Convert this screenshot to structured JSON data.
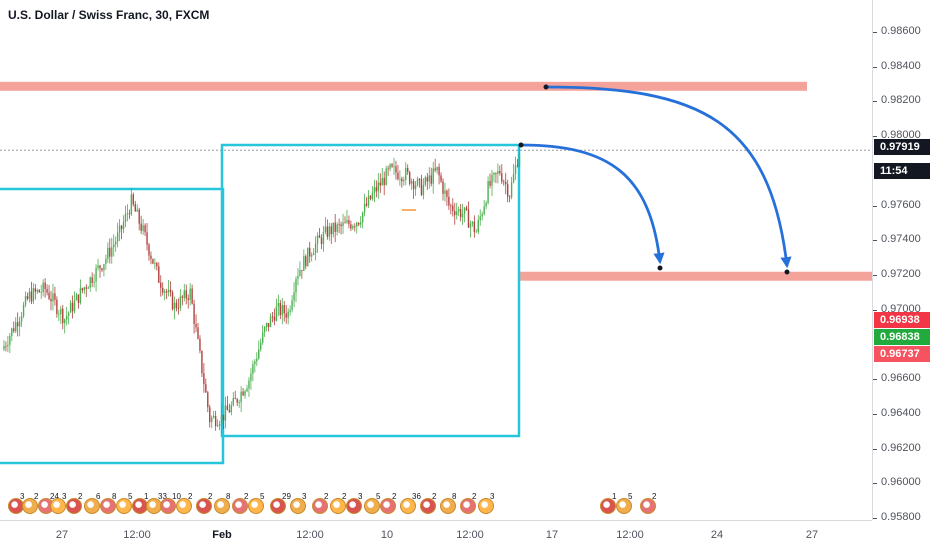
{
  "symbol": "U.S. Dollar / Swiss Franc, 30, FXCM",
  "price_axis": {
    "ticks": [
      "0.98600",
      "0.98400",
      "0.98200",
      "0.98000",
      "0.97600",
      "0.97400",
      "0.97200",
      "0.97000",
      "0.96600",
      "0.96400",
      "0.96200",
      "0.96000",
      "0.95800"
    ],
    "badges": [
      {
        "label": "0.97919",
        "bg": "#131722"
      },
      {
        "label": "11:54",
        "bg": "#131722"
      },
      {
        "label": "0.96938",
        "bg": "#f23645"
      },
      {
        "label": "0.96838",
        "bg": "#22ab3c"
      },
      {
        "label": "0.96737",
        "bg": "#f7525f"
      }
    ]
  },
  "time_axis": {
    "labels": [
      {
        "text": "27",
        "bold": false
      },
      {
        "text": "12:00",
        "bold": false
      },
      {
        "text": "Feb",
        "bold": true
      },
      {
        "text": "12:00",
        "bold": false
      },
      {
        "text": "10",
        "bold": false
      },
      {
        "text": "12:00",
        "bold": false
      },
      {
        "text": "17",
        "bold": false
      },
      {
        "text": "12:00",
        "bold": false
      },
      {
        "text": "24",
        "bold": false
      },
      {
        "text": "27",
        "bold": false
      }
    ]
  },
  "events": [
    {
      "num": "3"
    },
    {
      "num": "2"
    },
    {
      "num": "24"
    },
    {
      "num": "3"
    },
    {
      "num": "2"
    },
    {
      "num": "6"
    },
    {
      "num": "8"
    },
    {
      "num": "5"
    },
    {
      "num": "1"
    },
    {
      "num": "33"
    },
    {
      "num": "10"
    },
    {
      "num": "2"
    },
    {
      "num": "2"
    },
    {
      "num": "8"
    },
    {
      "num": "2"
    },
    {
      "num": "5"
    },
    {
      "num": "29"
    },
    {
      "num": "3"
    },
    {
      "num": "2"
    },
    {
      "num": "2"
    },
    {
      "num": "3"
    },
    {
      "num": "5"
    },
    {
      "num": "2"
    },
    {
      "num": "36"
    },
    {
      "num": "2"
    },
    {
      "num": "8"
    },
    {
      "num": "2"
    },
    {
      "num": "3"
    },
    {
      "num": "1"
    },
    {
      "num": "5"
    },
    {
      "num": "2"
    }
  ],
  "colors": {
    "zone": "#f4a39b",
    "box": "#26c6da",
    "arrow": "#2670d9",
    "candle_up": "#4caf50",
    "candle_down": "#b0413e"
  },
  "chart_data": {
    "type": "candlestick",
    "symbol": "U.S. Dollar / Swiss Franc",
    "timeframe": "30",
    "ylim": [
      0.958,
      0.9868
    ],
    "current_price": 0.97919,
    "countdown": "11:54",
    "key_levels": [
      0.9829,
      0.9719
    ],
    "price_path": [
      {
        "i": 0,
        "v": 0.9677
      },
      {
        "i": 6,
        "v": 0.969
      },
      {
        "i": 14,
        "v": 0.9708
      },
      {
        "i": 22,
        "v": 0.9712
      },
      {
        "i": 32,
        "v": 0.9695
      },
      {
        "i": 42,
        "v": 0.9713
      },
      {
        "i": 52,
        "v": 0.9728
      },
      {
        "i": 60,
        "v": 0.9744
      },
      {
        "i": 66,
        "v": 0.9762
      },
      {
        "i": 72,
        "v": 0.9745
      },
      {
        "i": 80,
        "v": 0.9718
      },
      {
        "i": 88,
        "v": 0.9702
      },
      {
        "i": 96,
        "v": 0.971
      },
      {
        "i": 100,
        "v": 0.968
      },
      {
        "i": 106,
        "v": 0.9637
      },
      {
        "i": 112,
        "v": 0.9638
      },
      {
        "i": 118,
        "v": 0.9645
      },
      {
        "i": 126,
        "v": 0.966
      },
      {
        "i": 134,
        "v": 0.9688
      },
      {
        "i": 140,
        "v": 0.97
      },
      {
        "i": 146,
        "v": 0.9698
      },
      {
        "i": 150,
        "v": 0.972
      },
      {
        "i": 158,
        "v": 0.9735
      },
      {
        "i": 166,
        "v": 0.9745
      },
      {
        "i": 174,
        "v": 0.9748
      },
      {
        "i": 182,
        "v": 0.9752
      },
      {
        "i": 190,
        "v": 0.9768
      },
      {
        "i": 198,
        "v": 0.978
      },
      {
        "i": 206,
        "v": 0.9778
      },
      {
        "i": 214,
        "v": 0.977
      },
      {
        "i": 222,
        "v": 0.978
      },
      {
        "i": 228,
        "v": 0.976
      },
      {
        "i": 236,
        "v": 0.9755
      },
      {
        "i": 242,
        "v": 0.9745
      },
      {
        "i": 248,
        "v": 0.977
      },
      {
        "i": 254,
        "v": 0.978
      },
      {
        "i": 259,
        "v": 0.9767
      },
      {
        "i": 264,
        "v": 0.9792
      }
    ]
  }
}
